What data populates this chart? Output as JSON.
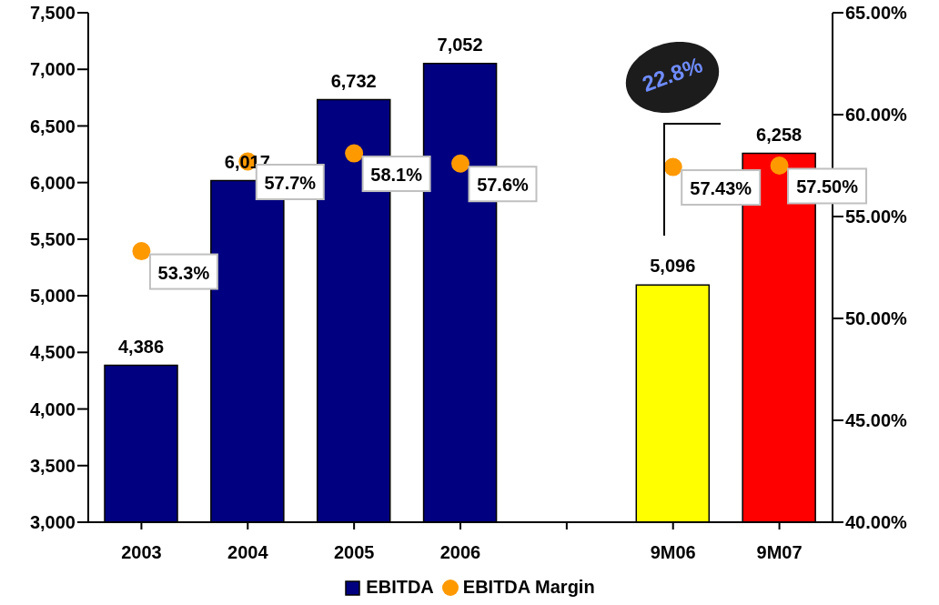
{
  "chart_data": {
    "type": "bar",
    "categories": [
      "2003",
      "2004",
      "2005",
      "2006",
      null,
      "9M06",
      "9M07"
    ],
    "series": [
      {
        "name": "EBITDA",
        "color": "#000080",
        "colors": [
          "#000080",
          "#000080",
          "#000080",
          "#000080",
          "#000080",
          "#ffff00",
          "#ff0000"
        ],
        "values": [
          4386,
          6017,
          6732,
          7052,
          null,
          5096,
          6258
        ],
        "value_labels": [
          "4,386",
          "6,017",
          "6,732",
          "7,052",
          null,
          "5,096",
          "6,258"
        ]
      },
      {
        "name": "EBITDA Margin",
        "type": "scatter",
        "axis": "y2",
        "color": "#ff9900",
        "values": [
          53.3,
          57.7,
          58.1,
          57.6,
          null,
          57.43,
          57.5
        ],
        "value_labels": [
          "53.3%",
          "57.7%",
          "58.1%",
          "57.6%",
          null,
          "57.43%",
          "57.50%"
        ]
      }
    ],
    "ylim": [
      3000,
      7500
    ],
    "yticks": [
      {
        "value": 3000,
        "label": "3,000"
      },
      {
        "value": 3500,
        "label": "3,500"
      },
      {
        "value": 4000,
        "label": "4,000"
      },
      {
        "value": 4500,
        "label": "4,500"
      },
      {
        "value": 5000,
        "label": "5,000"
      },
      {
        "value": 5500,
        "label": "5,500"
      },
      {
        "value": 6000,
        "label": "6,000"
      },
      {
        "value": 6500,
        "label": "6,500"
      },
      {
        "value": 7000,
        "label": "7,000"
      },
      {
        "value": 7500,
        "label": "7,500"
      }
    ],
    "y2lim": [
      40,
      65
    ],
    "y2ticks": [
      {
        "value": 40,
        "label": "40.00%"
      },
      {
        "value": 45,
        "label": "45.00%"
      },
      {
        "value": 50,
        "label": "50.00%"
      },
      {
        "value": 55,
        "label": "55.00%"
      },
      {
        "value": 60,
        "label": "60.00%"
      },
      {
        "value": 65,
        "label": "65.00%"
      }
    ],
    "annotations": [
      "22.8%"
    ],
    "legend": "bottom",
    "marker": "circle",
    "grid": false
  }
}
